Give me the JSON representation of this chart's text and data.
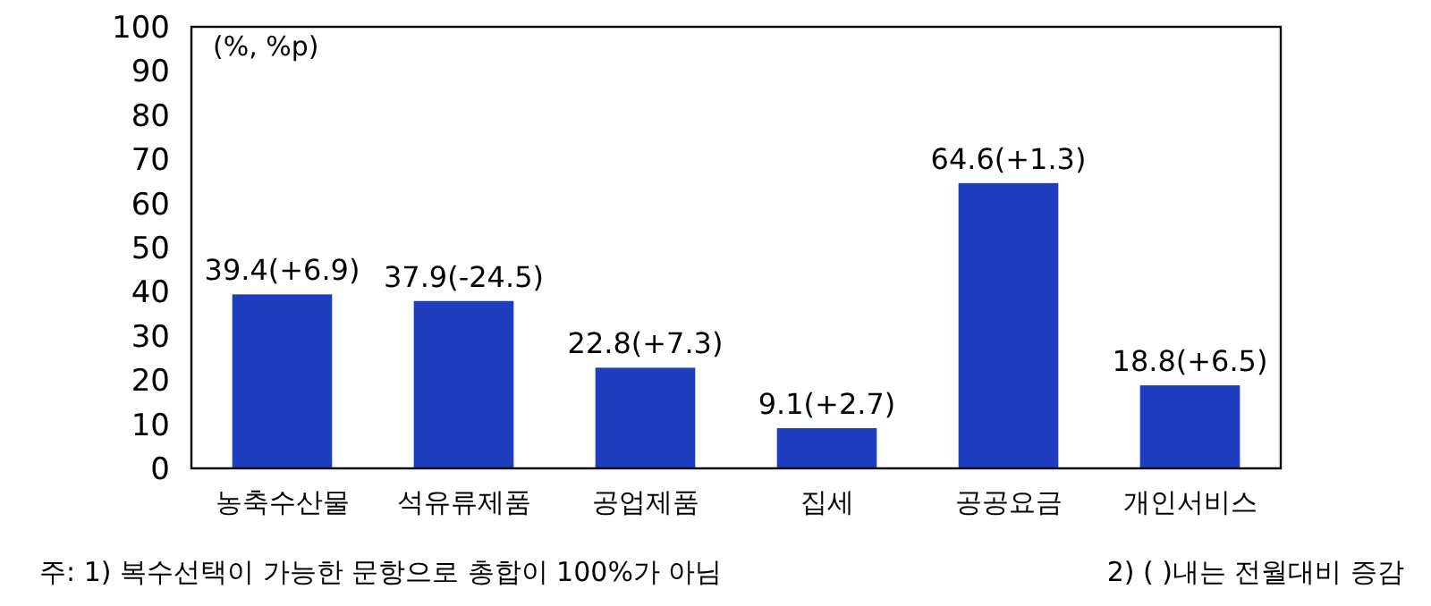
{
  "chart_data": {
    "type": "bar",
    "ylabel": "(%, %p)",
    "categories": [
      "농축수산물",
      "석유류제품",
      "공업제품",
      "집세",
      "공공요금",
      "개인서비스"
    ],
    "values": [
      39.4,
      37.9,
      22.8,
      9.1,
      64.6,
      18.8
    ],
    "value_labels": [
      "39.4(+6.9)",
      "37.9(-24.5)",
      "22.8(+7.3)",
      "9.1(+2.7)",
      "64.6(+1.3)",
      "18.8(+6.5)"
    ],
    "color": "#1f3ebf",
    "ylim": [
      0,
      100
    ],
    "yticks": [
      0,
      10,
      20,
      30,
      40,
      50,
      60,
      70,
      80,
      90,
      100
    ],
    "grid": false,
    "annotations": [
      "주: 1) 복수선택이 가능한 문항으로 총합이 100%가 아님",
      "2) ( )내는 전월대비 증감"
    ]
  }
}
